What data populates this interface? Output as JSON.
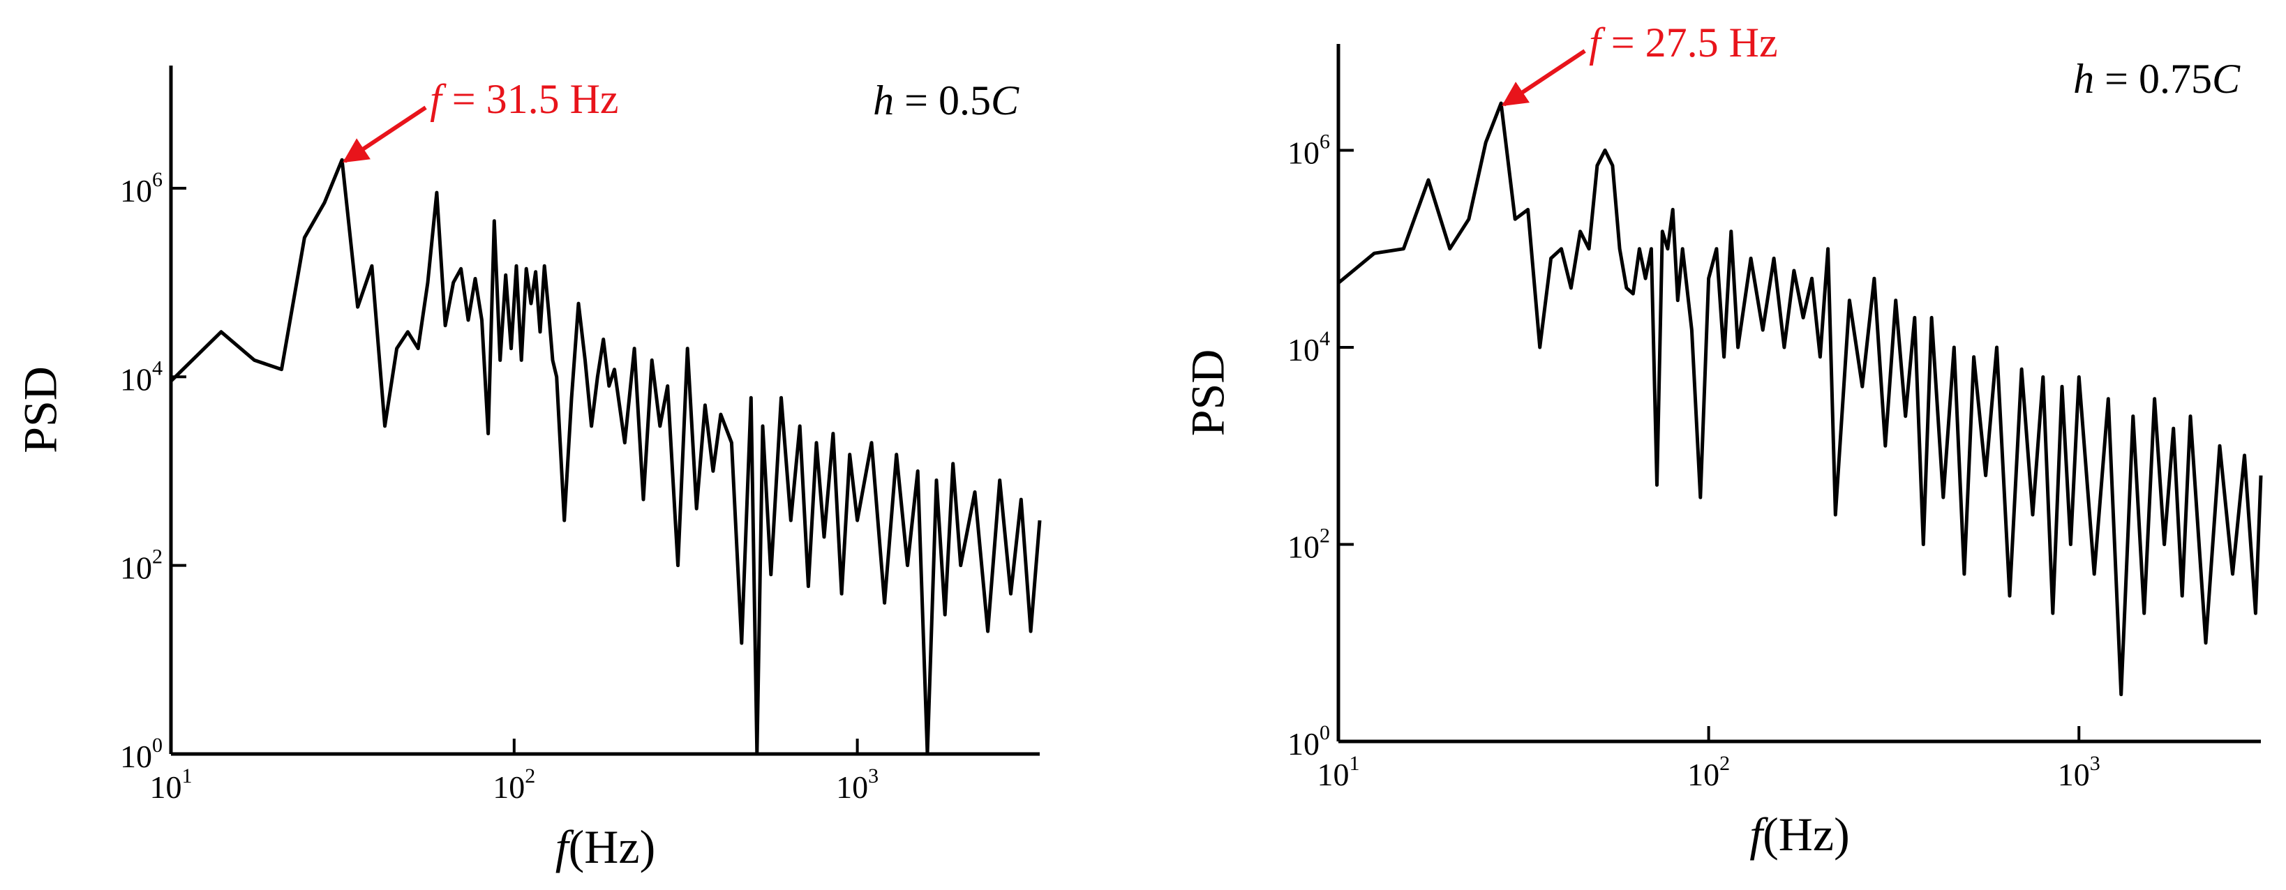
{
  "chart_data": [
    {
      "type": "line",
      "ylabel": "PSD",
      "xlabel": {
        "var": "f",
        "unit": "(Hz)"
      },
      "xlog": true,
      "ylog": true,
      "xlim": [
        10,
        3400
      ],
      "ylim": [
        1,
        20000000
      ],
      "xticks": [
        {
          "value": 10,
          "label": "10",
          "exponent": "1"
        },
        {
          "value": 100,
          "label": "10",
          "exponent": "2"
        },
        {
          "value": 1000,
          "label": "10",
          "exponent": "3"
        }
      ],
      "yticks": [
        {
          "value": 1,
          "label": "10",
          "exponent": "0"
        },
        {
          "value": 100,
          "label": "10",
          "exponent": "2"
        },
        {
          "value": 10000,
          "label": "10",
          "exponent": "4"
        },
        {
          "value": 1000000,
          "label": "10",
          "exponent": "6"
        }
      ],
      "color": "#000000",
      "x": [
        10,
        14,
        17.5,
        21,
        24.5,
        28,
        31.5,
        35,
        38.5,
        42,
        45.5,
        49,
        52.5,
        56,
        59.5,
        63,
        66.5,
        70,
        73.5,
        77,
        80.5,
        84,
        87.5,
        91,
        94.5,
        98,
        101.5,
        105,
        108.5,
        112,
        115.5,
        119,
        122.5,
        126,
        129.5,
        133,
        140,
        147,
        154,
        161,
        168,
        175,
        182,
        189,
        196,
        210,
        224,
        238,
        252,
        266,
        280,
        300,
        320,
        340,
        360,
        380,
        400,
        430,
        460,
        490,
        510,
        530,
        560,
        600,
        640,
        680,
        720,
        760,
        800,
        850,
        900,
        950,
        1000,
        1100,
        1200,
        1300,
        1400,
        1500,
        1600,
        1700,
        1800,
        1900,
        2000,
        2200,
        2400,
        2600,
        2800,
        3000,
        3200,
        3400
      ],
      "values": [
        9000,
        30000,
        15000,
        12000,
        300000,
        700000,
        2000000,
        55000,
        150000,
        3000,
        20000,
        30000,
        20000,
        100000,
        900000,
        35000,
        100000,
        140000,
        40000,
        110000,
        40000,
        2500,
        450000,
        15000,
        120000,
        20000,
        150000,
        15000,
        140000,
        60000,
        130000,
        30000,
        150000,
        50000,
        15000,
        10000,
        300,
        6000,
        60000,
        15000,
        3000,
        10000,
        25000,
        8000,
        12000,
        2000,
        20000,
        500,
        15000,
        3000,
        8000,
        100,
        20000,
        400,
        5000,
        1000,
        4000,
        2000,
        15,
        6000,
        1,
        3000,
        80,
        6000,
        300,
        3000,
        60,
        2000,
        200,
        2500,
        50,
        1500,
        300,
        2000,
        40,
        1500,
        100,
        1000,
        1,
        800,
        30,
        1200,
        100,
        600,
        20,
        800,
        50,
        500,
        20,
        300
      ],
      "annotations": [
        {
          "italic": "f",
          "text": " = 31.5 Hz",
          "x": 31.5,
          "y": 2000000,
          "color": "#e8141b"
        }
      ],
      "case": {
        "italic": "h",
        "text": " = 0.5",
        "italic2": "C"
      }
    },
    {
      "type": "line",
      "ylabel": "PSD",
      "xlabel": {
        "var": "f",
        "unit": "(Hz)"
      },
      "xlog": true,
      "ylog": true,
      "xlim": [
        10,
        3100
      ],
      "ylim": [
        1,
        12000000
      ],
      "xticks": [
        {
          "value": 10,
          "label": "10",
          "exponent": "1"
        },
        {
          "value": 100,
          "label": "10",
          "exponent": "2"
        },
        {
          "value": 1000,
          "label": "10",
          "exponent": "3"
        }
      ],
      "yticks": [
        {
          "value": 1,
          "label": "10",
          "exponent": "0"
        },
        {
          "value": 100,
          "label": "10",
          "exponent": "2"
        },
        {
          "value": 10000,
          "label": "10",
          "exponent": "4"
        },
        {
          "value": 1000000,
          "label": "10",
          "exponent": "6"
        }
      ],
      "color": "#000000",
      "x": [
        10,
        12.5,
        15,
        17.5,
        20,
        22.5,
        25,
        27.5,
        30,
        32.5,
        35,
        37.5,
        40,
        42.5,
        45,
        47.5,
        50,
        52.5,
        55,
        57.5,
        60,
        62.5,
        65,
        67.5,
        70,
        72.5,
        75,
        77.5,
        80,
        82.5,
        85,
        90,
        95,
        100,
        105,
        110,
        115,
        120,
        130,
        140,
        150,
        160,
        170,
        180,
        190,
        200,
        210,
        220,
        240,
        260,
        280,
        300,
        320,
        340,
        360,
        380,
        400,
        430,
        460,
        490,
        520,
        560,
        600,
        650,
        700,
        750,
        800,
        850,
        900,
        950,
        1000,
        1100,
        1200,
        1300,
        1400,
        1500,
        1600,
        1700,
        1800,
        1900,
        2000,
        2200,
        2400,
        2600,
        2800,
        3000,
        3100
      ],
      "values": [
        45000,
        90000,
        100000,
        500000,
        100000,
        200000,
        1200000,
        3000000,
        200000,
        250000,
        10000,
        80000,
        100000,
        40000,
        150000,
        100000,
        700000,
        1000000,
        700000,
        100000,
        40000,
        35000,
        100000,
        50000,
        100000,
        400,
        150000,
        100000,
        250000,
        30000,
        100000,
        15000,
        300,
        50000,
        100000,
        8000,
        150000,
        10000,
        80000,
        15000,
        80000,
        10000,
        60000,
        20000,
        50000,
        8000,
        100000,
        200,
        30000,
        4000,
        50000,
        1000,
        30000,
        2000,
        20000,
        100,
        20000,
        300,
        10000,
        50,
        8000,
        500,
        10000,
        30,
        6000,
        200,
        5000,
        20,
        4000,
        100,
        5000,
        50,
        3000,
        3,
        2000,
        20,
        3000,
        100,
        1500,
        30,
        2000,
        10,
        1000,
        50,
        800,
        20,
        500
      ],
      "annotations": [
        {
          "italic": "f",
          "text": " = 27.5 Hz",
          "x": 27.5,
          "y": 3000000,
          "color": "#e8141b"
        }
      ],
      "case": {
        "italic": "h",
        "text": " = 0.75",
        "italic2": "C"
      }
    }
  ]
}
